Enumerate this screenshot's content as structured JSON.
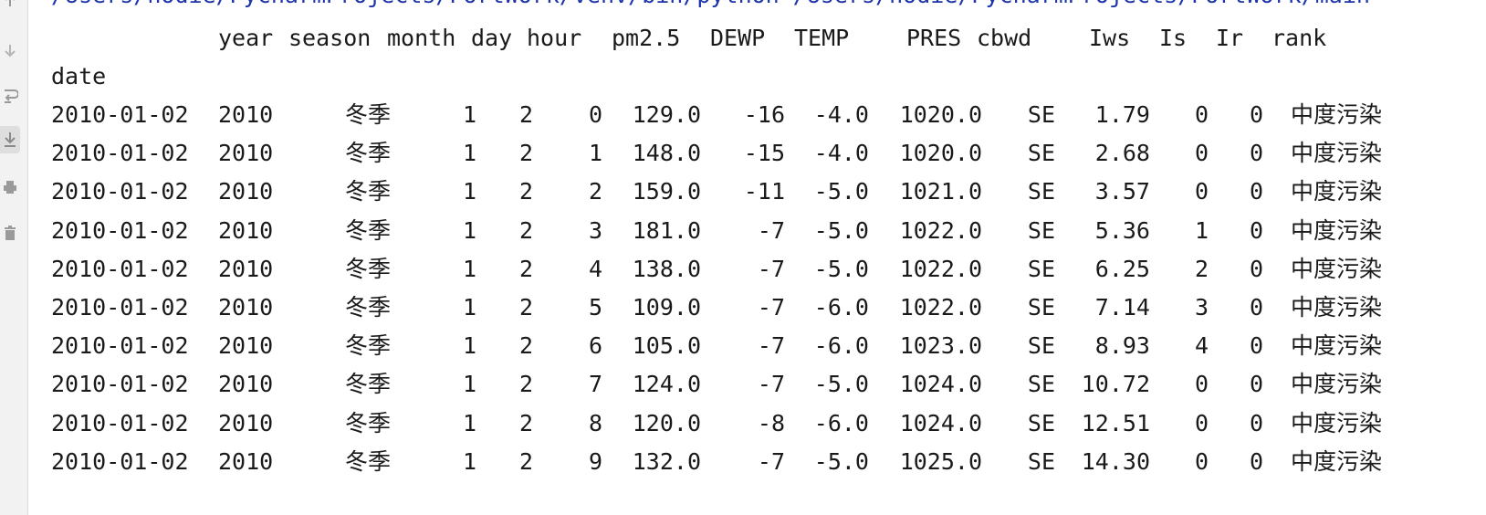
{
  "command_line": "/Users/nodie/PycharmProjects/PortWork/venv/bin/python /Users/nodie/PycharmProjects/PortWork/main",
  "header": {
    "year": "year",
    "season": "season",
    "month": "month",
    "day": "day",
    "hour": "hour",
    "pm25": "pm2.5",
    "dewp": "DEWP",
    "temp": "TEMP",
    "pres": "PRES",
    "cbwd": "cbwd",
    "iws": "Iws",
    "is": "Is",
    "ir": "Ir",
    "rank": "rank"
  },
  "index_name": "date",
  "rows": [
    {
      "date": "2010-01-02",
      "year": "2010",
      "season": "冬季",
      "month": "1",
      "day": "2",
      "hour": "0",
      "pm25": "129.0",
      "dewp": "-16",
      "temp": "-4.0",
      "pres": "1020.0",
      "cbwd": "SE",
      "iws": "1.79",
      "is": "0",
      "ir": "0",
      "rank": "中度污染"
    },
    {
      "date": "2010-01-02",
      "year": "2010",
      "season": "冬季",
      "month": "1",
      "day": "2",
      "hour": "1",
      "pm25": "148.0",
      "dewp": "-15",
      "temp": "-4.0",
      "pres": "1020.0",
      "cbwd": "SE",
      "iws": "2.68",
      "is": "0",
      "ir": "0",
      "rank": "中度污染"
    },
    {
      "date": "2010-01-02",
      "year": "2010",
      "season": "冬季",
      "month": "1",
      "day": "2",
      "hour": "2",
      "pm25": "159.0",
      "dewp": "-11",
      "temp": "-5.0",
      "pres": "1021.0",
      "cbwd": "SE",
      "iws": "3.57",
      "is": "0",
      "ir": "0",
      "rank": "中度污染"
    },
    {
      "date": "2010-01-02",
      "year": "2010",
      "season": "冬季",
      "month": "1",
      "day": "2",
      "hour": "3",
      "pm25": "181.0",
      "dewp": "-7",
      "temp": "-5.0",
      "pres": "1022.0",
      "cbwd": "SE",
      "iws": "5.36",
      "is": "1",
      "ir": "0",
      "rank": "中度污染"
    },
    {
      "date": "2010-01-02",
      "year": "2010",
      "season": "冬季",
      "month": "1",
      "day": "2",
      "hour": "4",
      "pm25": "138.0",
      "dewp": "-7",
      "temp": "-5.0",
      "pres": "1022.0",
      "cbwd": "SE",
      "iws": "6.25",
      "is": "2",
      "ir": "0",
      "rank": "中度污染"
    },
    {
      "date": "2010-01-02",
      "year": "2010",
      "season": "冬季",
      "month": "1",
      "day": "2",
      "hour": "5",
      "pm25": "109.0",
      "dewp": "-7",
      "temp": "-6.0",
      "pres": "1022.0",
      "cbwd": "SE",
      "iws": "7.14",
      "is": "3",
      "ir": "0",
      "rank": "中度污染"
    },
    {
      "date": "2010-01-02",
      "year": "2010",
      "season": "冬季",
      "month": "1",
      "day": "2",
      "hour": "6",
      "pm25": "105.0",
      "dewp": "-7",
      "temp": "-6.0",
      "pres": "1023.0",
      "cbwd": "SE",
      "iws": "8.93",
      "is": "4",
      "ir": "0",
      "rank": "中度污染"
    },
    {
      "date": "2010-01-02",
      "year": "2010",
      "season": "冬季",
      "month": "1",
      "day": "2",
      "hour": "7",
      "pm25": "124.0",
      "dewp": "-7",
      "temp": "-5.0",
      "pres": "1024.0",
      "cbwd": "SE",
      "iws": "10.72",
      "is": "0",
      "ir": "0",
      "rank": "中度污染"
    },
    {
      "date": "2010-01-02",
      "year": "2010",
      "season": "冬季",
      "month": "1",
      "day": "2",
      "hour": "8",
      "pm25": "120.0",
      "dewp": "-8",
      "temp": "-6.0",
      "pres": "1024.0",
      "cbwd": "SE",
      "iws": "12.51",
      "is": "0",
      "ir": "0",
      "rank": "中度污染"
    },
    {
      "date": "2010-01-02",
      "year": "2010",
      "season": "冬季",
      "month": "1",
      "day": "2",
      "hour": "9",
      "pm25": "132.0",
      "dewp": "-7",
      "temp": "-5.0",
      "pres": "1025.0",
      "cbwd": "SE",
      "iws": "14.30",
      "is": "0",
      "ir": "0",
      "rank": "中度污染"
    }
  ],
  "icons": {
    "gutter": [
      "up-arrow-icon",
      "down-arrow-icon",
      "soft-wrap-icon",
      "scroll-to-end-icon",
      "print-icon",
      "trash-icon"
    ]
  }
}
